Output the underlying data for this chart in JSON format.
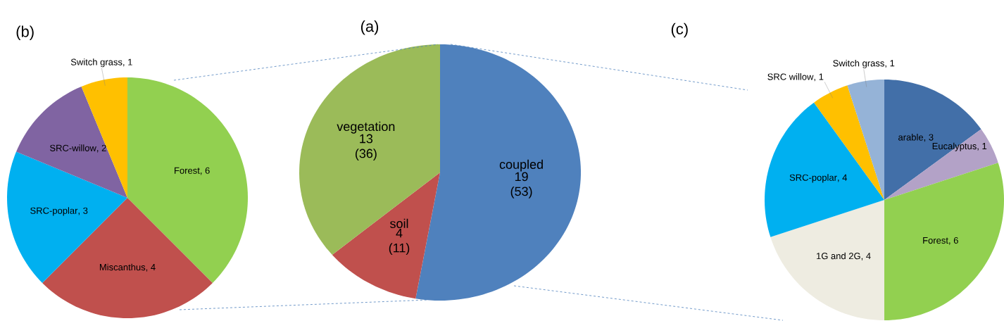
{
  "chart_data": [
    {
      "type": "pie",
      "title": "(b)",
      "categories": [
        "Forest",
        "Miscanthus",
        "SRC-poplar",
        "SRC-willow",
        "Switch grass"
      ],
      "values": [
        6,
        4,
        3,
        2,
        1
      ],
      "colors": [
        "#92d050",
        "#c0504d",
        "#00b0f0",
        "#8064a2",
        "#ffc000"
      ],
      "value_labels": [
        ", 6",
        ", 4",
        ", 3",
        ", 2",
        ", 1"
      ]
    },
    {
      "type": "pie",
      "title": "(a)",
      "categories": [
        "coupled",
        "soil",
        "vegetation"
      ],
      "values": [
        19,
        4,
        13
      ],
      "colors": [
        "#4f81bd",
        "#c0504d",
        "#9bbb59"
      ],
      "value_labels": [
        "19 (53)",
        "4 (11)",
        "13 (36)"
      ]
    },
    {
      "type": "pie",
      "title": "(c)",
      "categories": [
        "arable",
        "Eucalyptus",
        "Forest",
        "1G and 2G",
        "SRC-poplar",
        "SRC willow",
        "Switch grass"
      ],
      "values": [
        3,
        1,
        6,
        4,
        4,
        1,
        1
      ],
      "colors": [
        "#426fa8",
        "#b3a2c7",
        "#92d050",
        "#eeece1",
        "#00b0f0",
        "#ffc000",
        "#95b3d7"
      ],
      "value_labels": [
        ", 3",
        ", 1",
        ", 6",
        ", 4",
        ", 4",
        ", 1",
        ", 1"
      ]
    }
  ]
}
